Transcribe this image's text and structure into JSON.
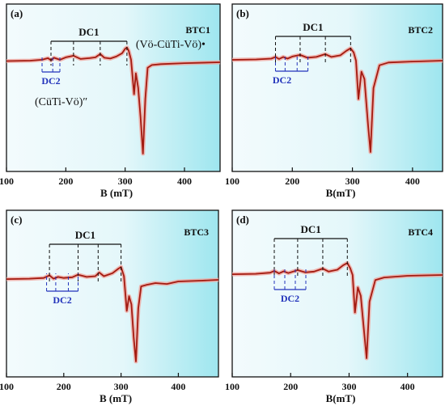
{
  "colors": {
    "bg_left": "#f3fbfd",
    "bg_right": "#9ee6ef",
    "curve_core": "#a31a10",
    "curve_glow": "#f0a8a0",
    "bracket_dc1": "#111111",
    "bracket_dc2": "#2233bb"
  },
  "chart_data": [
    {
      "panel": "(a)",
      "sample": "BTC1",
      "type": "line",
      "xlabel": "B (mT)",
      "xlim": [
        100,
        460
      ],
      "xticks": [
        "100",
        "200",
        "300",
        "400"
      ],
      "dc1_label": "DC1",
      "dc2_label": "DC2",
      "dc1_marks": [
        175,
        213,
        258,
        303
      ],
      "dc2_marks": [
        160,
        178,
        190
      ],
      "annotation_upper": "(Vö-CüTi-Vö)•",
      "annotation_lower": "(CüTi-Vö)″",
      "x": [
        100,
        140,
        160,
        170,
        175,
        180,
        190,
        200,
        213,
        225,
        240,
        250,
        258,
        265,
        275,
        285,
        295,
        300,
        303,
        306,
        310,
        315,
        318,
        322,
        326,
        330,
        334,
        338,
        345,
        360,
        400,
        460
      ],
      "y": [
        0.03,
        0.04,
        0.06,
        0.1,
        0.05,
        0.11,
        0.06,
        0.12,
        0.16,
        0.08,
        0.1,
        0.12,
        0.2,
        0.11,
        0.09,
        0.14,
        0.22,
        0.33,
        0.36,
        0.28,
        0.06,
        -0.35,
        -0.12,
        -0.28,
        -0.6,
        -1.0,
        -0.4,
        -0.06,
        -0.03,
        -0.02,
        -0.01,
        0.0
      ]
    },
    {
      "panel": "(b)",
      "sample": "BTC2",
      "type": "line",
      "xlabel": "B(mT)",
      "xlim": [
        100,
        450
      ],
      "xticks": [
        "100",
        "200",
        "300",
        "400"
      ],
      "dc1_label": "DC1",
      "dc2_label": "DC2",
      "dc1_marks": [
        172,
        213,
        255,
        297
      ],
      "dc2_marks": [
        172,
        188,
        208,
        226
      ],
      "x": [
        100,
        140,
        165,
        172,
        178,
        185,
        192,
        200,
        213,
        225,
        240,
        255,
        265,
        280,
        290,
        297,
        302,
        306,
        310,
        315,
        320,
        326,
        330,
        335,
        345,
        360,
        400,
        450
      ],
      "y": [
        0.02,
        0.03,
        0.05,
        0.09,
        0.04,
        0.09,
        0.05,
        0.1,
        0.14,
        0.07,
        0.09,
        0.16,
        0.09,
        0.13,
        0.24,
        0.3,
        0.2,
        0.0,
        -0.42,
        -0.12,
        -0.2,
        -0.7,
        -1.0,
        -0.3,
        -0.05,
        -0.02,
        -0.01,
        0.0
      ]
    },
    {
      "panel": "(c)",
      "sample": "BTC3",
      "type": "line",
      "xlabel": "B (mT)",
      "xlim": [
        100,
        470
      ],
      "xticks": [
        "100",
        "200",
        "300",
        "400"
      ],
      "dc1_label": "DC1",
      "dc2_label": "DC2",
      "dc1_marks": [
        175,
        225,
        260,
        300
      ],
      "dc2_marks": [
        170,
        186,
        208,
        225
      ],
      "x": [
        100,
        140,
        165,
        175,
        182,
        190,
        200,
        215,
        225,
        240,
        255,
        262,
        270,
        285,
        295,
        300,
        305,
        310,
        314,
        318,
        322,
        326,
        330,
        335,
        345,
        360,
        380,
        400,
        440,
        470
      ],
      "y": [
        0.02,
        0.03,
        0.05,
        0.12,
        0.03,
        0.08,
        0.05,
        0.07,
        0.14,
        0.08,
        0.1,
        0.2,
        0.1,
        0.18,
        0.3,
        0.35,
        0.1,
        -0.38,
        -0.2,
        -0.3,
        -0.7,
        -1.0,
        -0.35,
        -0.08,
        -0.06,
        -0.04,
        -0.05,
        -0.02,
        -0.01,
        0.0
      ]
    },
    {
      "panel": "(d)",
      "sample": "BTC4",
      "type": "line",
      "xlabel": "B(mT)",
      "xlim": [
        100,
        460
      ],
      "xticks": [
        "100",
        "200",
        "300",
        "400"
      ],
      "dc1_label": "DC1",
      "dc2_label": "DC2",
      "dc1_marks": [
        172,
        212,
        255,
        297
      ],
      "dc2_marks": [
        172,
        190,
        208,
        226
      ],
      "x": [
        100,
        140,
        165,
        172,
        180,
        188,
        196,
        204,
        212,
        225,
        240,
        255,
        265,
        280,
        290,
        297,
        302,
        306,
        310,
        315,
        320,
        326,
        330,
        335,
        345,
        360,
        400,
        460
      ],
      "y": [
        0.02,
        0.03,
        0.06,
        0.11,
        0.04,
        0.1,
        0.05,
        0.09,
        0.13,
        0.07,
        0.09,
        0.17,
        0.09,
        0.14,
        0.26,
        0.32,
        0.18,
        0.0,
        -0.45,
        -0.15,
        -0.25,
        -0.7,
        -1.0,
        -0.32,
        -0.06,
        -0.03,
        -0.01,
        0.0
      ]
    }
  ]
}
